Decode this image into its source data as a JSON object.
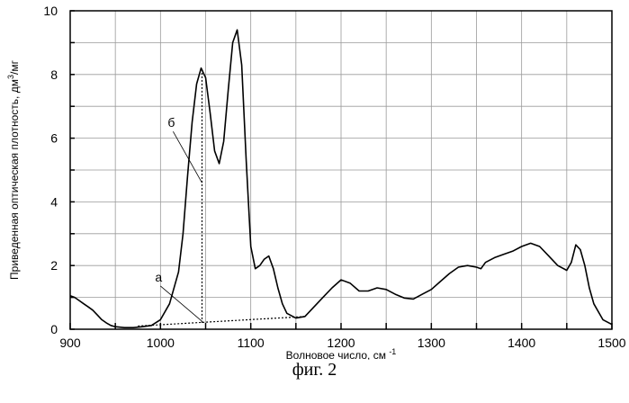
{
  "chart_data": {
    "type": "line",
    "title": "",
    "xlabel": "Волновое число, см",
    "xlabel_sup": "-1",
    "ylabel": "Приведенная оптическая плотность, дм",
    "ylabel_sup": "3",
    "ylabel_tail": "/мг",
    "xlim": [
      900,
      1500
    ],
    "ylim": [
      0,
      10
    ],
    "x_ticks": [
      "900",
      "1000",
      "1100",
      "1200",
      "1300",
      "1400",
      "1500"
    ],
    "y_ticks": [
      "0",
      "2",
      "4",
      "6",
      "8",
      "10"
    ],
    "grid": true,
    "series": [
      {
        "x": [
          900,
          905,
          910,
          915,
          920,
          925,
          930,
          935,
          940,
          945,
          950,
          960,
          970,
          980,
          990,
          1000,
          1010,
          1020,
          1025,
          1030,
          1035,
          1040,
          1045,
          1050,
          1055,
          1060,
          1065,
          1070,
          1075,
          1080,
          1085,
          1090,
          1095,
          1100,
          1105,
          1110,
          1115,
          1120,
          1125,
          1130,
          1135,
          1140,
          1150,
          1160,
          1170,
          1180,
          1190,
          1200,
          1210,
          1220,
          1230,
          1240,
          1250,
          1260,
          1270,
          1280,
          1290,
          1300,
          1310,
          1320,
          1330,
          1340,
          1350,
          1355,
          1360,
          1370,
          1380,
          1390,
          1400,
          1410,
          1420,
          1430,
          1440,
          1450,
          1455,
          1460,
          1465,
          1470,
          1475,
          1480,
          1490,
          1500
        ],
        "y": [
          1.05,
          1.0,
          0.9,
          0.8,
          0.7,
          0.6,
          0.45,
          0.3,
          0.2,
          0.12,
          0.08,
          0.05,
          0.05,
          0.08,
          0.12,
          0.3,
          0.8,
          1.8,
          3.0,
          4.8,
          6.5,
          7.7,
          8.2,
          7.9,
          6.8,
          5.6,
          5.2,
          5.9,
          7.5,
          9.0,
          9.4,
          8.3,
          5.3,
          2.6,
          1.9,
          2.0,
          2.2,
          2.3,
          1.9,
          1.3,
          0.8,
          0.5,
          0.35,
          0.4,
          0.7,
          1.0,
          1.3,
          1.55,
          1.45,
          1.2,
          1.2,
          1.3,
          1.25,
          1.1,
          0.98,
          0.95,
          1.1,
          1.25,
          1.5,
          1.75,
          1.95,
          2.0,
          1.95,
          1.9,
          2.1,
          2.25,
          2.35,
          2.45,
          2.6,
          2.7,
          2.6,
          2.3,
          2.0,
          1.85,
          2.1,
          2.65,
          2.5,
          2.0,
          1.3,
          0.8,
          0.3,
          0.15
        ]
      }
    ],
    "baseline": {
      "x": [
        975,
        1160
      ],
      "y": [
        0.1,
        0.4
      ]
    },
    "peak_marker": {
      "x": 1046,
      "y_from": 0.2,
      "y_to": 8.2
    },
    "annotations": [
      {
        "text": "б",
        "x": 1012,
        "y": 6.35,
        "target_x": 1046,
        "target_y": 4.6
      },
      {
        "text": "а",
        "x": 998,
        "y": 1.5,
        "target_x": 1046,
        "target_y": 0.25
      }
    ]
  },
  "caption": "фиг. 2"
}
